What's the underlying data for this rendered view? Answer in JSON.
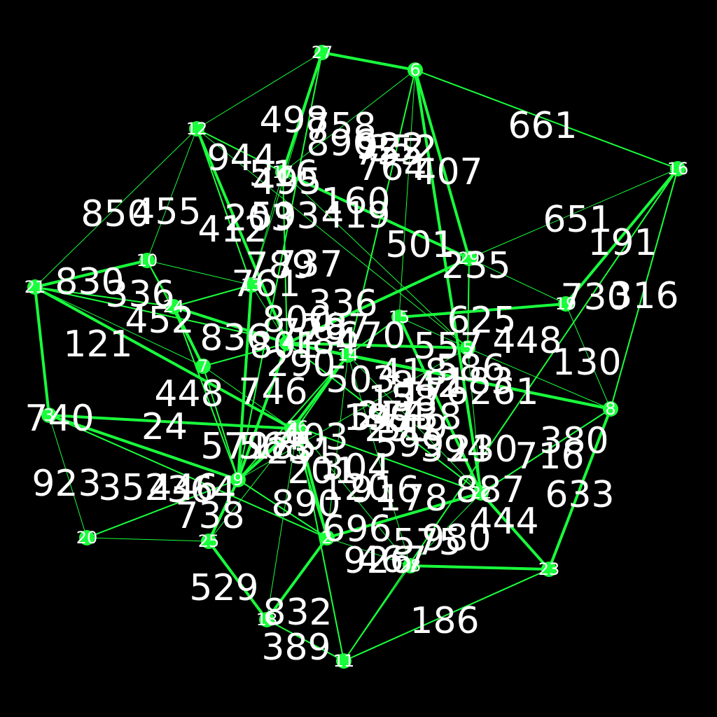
{
  "colors": {
    "background": "#000000",
    "edge": "#19ff3c",
    "node": "#19ff3c",
    "text": "#ffffff"
  },
  "nodes": [
    {
      "id": "1",
      "label": "1"
    },
    {
      "id": "2",
      "label": "2"
    },
    {
      "id": "3",
      "label": "3"
    },
    {
      "id": "4",
      "label": "4"
    },
    {
      "id": "5",
      "label": "5"
    },
    {
      "id": "6",
      "label": "6"
    },
    {
      "id": "7",
      "label": "7"
    },
    {
      "id": "8",
      "label": "8"
    },
    {
      "id": "9",
      "label": "9"
    },
    {
      "id": "10",
      "label": "10"
    },
    {
      "id": "11",
      "label": "11"
    },
    {
      "id": "12",
      "label": "12"
    },
    {
      "id": "13",
      "label": "13"
    },
    {
      "id": "14",
      "label": "14"
    },
    {
      "id": "15",
      "label": "15"
    },
    {
      "id": "16",
      "label": "16"
    },
    {
      "id": "17",
      "label": "17"
    },
    {
      "id": "18",
      "label": "18"
    },
    {
      "id": "19",
      "label": "19"
    },
    {
      "id": "20",
      "label": "20"
    },
    {
      "id": "21",
      "label": "21"
    },
    {
      "id": "22",
      "label": "22"
    },
    {
      "id": "23",
      "label": "23"
    },
    {
      "id": "24",
      "label": "24"
    },
    {
      "id": "25",
      "label": "25"
    },
    {
      "id": "26",
      "label": "26"
    },
    {
      "id": "27",
      "label": "27"
    },
    {
      "id": "28",
      "label": "28"
    },
    {
      "id": "29",
      "label": "29"
    }
  ],
  "edges": [
    {
      "source": "27",
      "target": "6",
      "label": ""
    },
    {
      "source": "27",
      "target": "12",
      "label": "498"
    },
    {
      "source": "27",
      "target": "9",
      "label": "758"
    },
    {
      "source": "27",
      "target": "17",
      "label": "896"
    },
    {
      "source": "6",
      "target": "17",
      "label": "922"
    },
    {
      "source": "6",
      "target": "16",
      "label": "661"
    },
    {
      "source": "6",
      "target": "29",
      "label": "764"
    },
    {
      "source": "6",
      "target": "15",
      "label": "352"
    },
    {
      "source": "6",
      "target": "14",
      "label": "407"
    },
    {
      "source": "6",
      "target": "22",
      "label": "850"
    },
    {
      "source": "12",
      "target": "21",
      "label": "944"
    },
    {
      "source": "12",
      "target": "13",
      "label": "516"
    },
    {
      "source": "12",
      "target": "4",
      "label": "455"
    },
    {
      "source": "12",
      "target": "5",
      "label": "191"
    },
    {
      "source": "16",
      "target": "8",
      "label": "730"
    },
    {
      "source": "16",
      "target": "19",
      "label": "651"
    },
    {
      "source": "16",
      "target": "29",
      "label": "316"
    },
    {
      "source": "16",
      "target": "11",
      "label": "830"
    },
    {
      "source": "10",
      "target": "21",
      "label": "336"
    },
    {
      "source": "10",
      "target": "24",
      "label": "121"
    },
    {
      "source": "10",
      "target": "7",
      "label": "740"
    },
    {
      "source": "21",
      "target": "3",
      "label": "24"
    },
    {
      "source": "21",
      "target": "7",
      "label": "923"
    },
    {
      "source": "21",
      "target": "14",
      "label": "352"
    },
    {
      "source": "21",
      "target": "1",
      "label": "446"
    },
    {
      "source": "3",
      "target": "20",
      "label": "529"
    },
    {
      "source": "3",
      "target": "2",
      "label": "738"
    },
    {
      "source": "3",
      "target": "1",
      "label": "832"
    },
    {
      "source": "20",
      "target": "25",
      "label": "389"
    },
    {
      "source": "20",
      "target": "9",
      "label": "186"
    },
    {
      "source": "25",
      "target": "18",
      "label": "926"
    },
    {
      "source": "25",
      "target": "26",
      "label": "755"
    },
    {
      "source": "18",
      "target": "11",
      "label": "716"
    },
    {
      "source": "18",
      "target": "2",
      "label": "633"
    },
    {
      "source": "11",
      "target": "28",
      "label": "130"
    },
    {
      "source": "11",
      "target": "23",
      "label": "448"
    },
    {
      "source": "28",
      "target": "23",
      "label": "625"
    },
    {
      "source": "28",
      "target": "22",
      "label": "501"
    },
    {
      "source": "22",
      "target": "8",
      "label": "586"
    },
    {
      "source": "22",
      "target": "23",
      "label": "737"
    },
    {
      "source": "8",
      "target": "19",
      "label": "789"
    },
    {
      "source": "8",
      "target": "14",
      "label": "729"
    },
    {
      "source": "19",
      "target": "15",
      "label": "836"
    },
    {
      "source": "19",
      "target": "29",
      "label": "448"
    },
    {
      "source": "29",
      "target": "5",
      "label": "178"
    },
    {
      "source": "29",
      "target": "4",
      "label": "364"
    },
    {
      "source": "15",
      "target": "5",
      "label": "519"
    },
    {
      "source": "9",
      "target": "24",
      "label": "746"
    },
    {
      "source": "9",
      "target": "4",
      "label": "738"
    },
    {
      "source": "17",
      "target": "13",
      "label": "800"
    },
    {
      "source": "13",
      "target": "24",
      "label": "787"
    },
    {
      "source": "24",
      "target": "7",
      "label": "394"
    },
    {
      "source": "7",
      "target": "1",
      "label": "503"
    },
    {
      "source": "1",
      "target": "26",
      "label": "418"
    },
    {
      "source": "26",
      "target": "2",
      "label": "185"
    },
    {
      "source": "2",
      "target": "28",
      "label": "575"
    },
    {
      "source": "14",
      "target": "26",
      "label": "980"
    },
    {
      "source": "4",
      "target": "14",
      "label": "696"
    },
    {
      "source": "5",
      "target": "9",
      "label": "290"
    },
    {
      "source": "15",
      "target": "14",
      "label": "274"
    },
    {
      "source": "1",
      "target": "14",
      "label": "201"
    },
    {
      "source": "14",
      "target": "22",
      "label": "203"
    },
    {
      "source": "26",
      "target": "22",
      "label": "419"
    },
    {
      "source": "2",
      "target": "22",
      "label": "261"
    },
    {
      "source": "2",
      "target": "14",
      "label": "579"
    },
    {
      "source": "7",
      "target": "4",
      "label": "761"
    },
    {
      "source": "3",
      "target": "9",
      "label": "412"
    },
    {
      "source": "5",
      "target": "22",
      "label": "403"
    },
    {
      "source": "17",
      "target": "4",
      "label": "890"
    },
    {
      "source": "13",
      "target": "9",
      "label": "304"
    },
    {
      "source": "26",
      "target": "28",
      "label": "199"
    },
    {
      "source": "1",
      "target": "2",
      "label": "184"
    },
    {
      "source": "4",
      "target": "8",
      "label": "593"
    },
    {
      "source": "10",
      "target": "12",
      "label": "160"
    },
    {
      "source": "12",
      "target": "17",
      "label": "568"
    },
    {
      "source": "17",
      "target": "29",
      "label": "231"
    },
    {
      "source": "27",
      "target": "13",
      "label": "120"
    },
    {
      "source": "9",
      "target": "14",
      "label": "158"
    },
    {
      "source": "25",
      "target": "9",
      "label": "336"
    },
    {
      "source": "18",
      "target": "26",
      "label": "495"
    },
    {
      "source": "11",
      "target": "26",
      "label": "452"
    },
    {
      "source": "23",
      "target": "8",
      "label": "801"
    },
    {
      "source": "5",
      "target": "8",
      "label": "670"
    },
    {
      "source": "7",
      "target": "9",
      "label": "293"
    },
    {
      "source": "24",
      "target": "4",
      "label": "230"
    },
    {
      "source": "13",
      "target": "4",
      "label": "467"
    },
    {
      "source": "1",
      "target": "9",
      "label": "444"
    },
    {
      "source": "26",
      "target": "9",
      "label": "235"
    },
    {
      "source": "14",
      "target": "28",
      "label": "380"
    },
    {
      "source": "2",
      "target": "9",
      "label": "887"
    },
    {
      "source": "22",
      "target": "15",
      "label": "916"
    },
    {
      "source": "10",
      "target": "13",
      "label": "842"
    },
    {
      "source": "21",
      "target": "24",
      "label": "557"
    },
    {
      "source": "4",
      "target": "5",
      "label": "176"
    },
    {
      "source": "17",
      "target": "5",
      "label": "599"
    },
    {
      "source": "4",
      "target": "22",
      "label": "541"
    },
    {
      "source": "14",
      "target": "8",
      "label": "183"
    }
  ]
}
